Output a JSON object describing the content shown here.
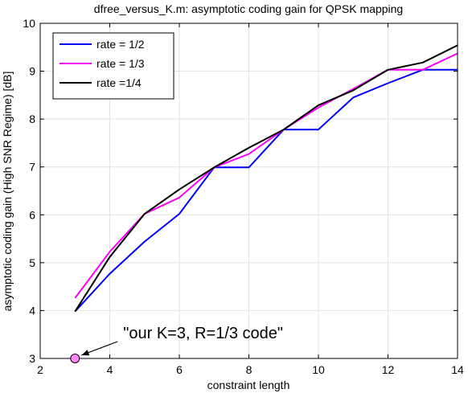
{
  "chart_data": {
    "type": "line",
    "title": "dfree_versus_K.m: asymptotic coding gain for QPSK mapping",
    "xlabel": "constraint length",
    "ylabel": "asymptotic coding gain (High SNR Regime) [dB]",
    "xlim": [
      2,
      14
    ],
    "ylim": [
      3,
      10
    ],
    "xticks": [
      2,
      4,
      6,
      8,
      10,
      12,
      14
    ],
    "yticks": [
      3,
      4,
      5,
      6,
      7,
      8,
      9,
      10
    ],
    "grid": true,
    "legend_position": "top-left",
    "x": [
      3,
      4,
      5,
      6,
      7,
      8,
      9,
      10,
      11,
      12,
      13,
      14
    ],
    "series": [
      {
        "name": "rate = 1/2",
        "color": "#0000ff",
        "values": [
          3.98,
          4.77,
          5.44,
          6.02,
          6.99,
          6.99,
          7.78,
          7.78,
          8.45,
          8.75,
          9.03,
          9.03
        ]
      },
      {
        "name": "rate = 1/3",
        "color": "#ff00ff",
        "values": [
          4.26,
          5.23,
          6.02,
          6.36,
          6.99,
          7.27,
          7.78,
          8.24,
          8.63,
          9.03,
          9.03,
          9.37
        ]
      },
      {
        "name": "rate =1/4",
        "color": "#000000",
        "values": [
          3.98,
          5.12,
          6.02,
          6.53,
          6.99,
          7.4,
          7.78,
          8.29,
          8.6,
          9.03,
          9.18,
          9.54
        ]
      }
    ],
    "marker": {
      "x": 3,
      "y": 3,
      "fill": "#ff88ff"
    },
    "annotation": {
      "text": "\"our K=3, R=1/3 code\"",
      "x": 3,
      "y": 3
    }
  }
}
